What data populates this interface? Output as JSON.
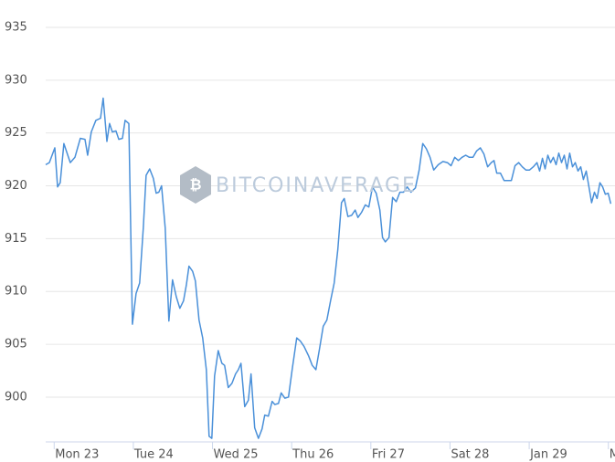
{
  "chart_data": {
    "type": "line",
    "watermark": "BITCOINAVERAGE",
    "color": "#4a90d9",
    "grid": true,
    "xlim": [
      -0.107,
      7.084
    ],
    "ylim": [
      895.76,
      937.59
    ],
    "yticks": [
      900,
      905,
      910,
      915,
      920,
      925,
      930,
      935
    ],
    "xticks": [
      {
        "value": 0,
        "label": "Mon 23"
      },
      {
        "value": 1,
        "label": "Tue 24"
      },
      {
        "value": 2,
        "label": "Wed 25"
      },
      {
        "value": 3,
        "label": "Thu 26"
      },
      {
        "value": 4,
        "label": "Fri 27"
      },
      {
        "value": 5,
        "label": "Sat 28"
      },
      {
        "value": 6,
        "label": "Jan 29"
      },
      {
        "value": 7,
        "label": "M"
      }
    ],
    "x": [
      -0.107,
      -0.061,
      0.008,
      0.043,
      0.077,
      0.123,
      0.204,
      0.262,
      0.331,
      0.389,
      0.423,
      0.469,
      0.527,
      0.585,
      0.619,
      0.666,
      0.7,
      0.735,
      0.781,
      0.816,
      0.862,
      0.896,
      0.943,
      0.988,
      1.034,
      1.08,
      1.126,
      1.161,
      1.207,
      1.253,
      1.288,
      1.322,
      1.357,
      1.403,
      1.449,
      1.495,
      1.542,
      1.588,
      1.634,
      1.669,
      1.703,
      1.749,
      1.784,
      1.83,
      1.876,
      1.922,
      1.957,
      1.992,
      2.026,
      2.072,
      2.118,
      2.153,
      2.199,
      2.245,
      2.291,
      2.326,
      2.36,
      2.407,
      2.453,
      2.487,
      2.533,
      2.58,
      2.626,
      2.66,
      2.706,
      2.753,
      2.787,
      2.833,
      2.868,
      2.914,
      2.96,
      3.006,
      3.064,
      3.11,
      3.156,
      3.214,
      3.26,
      3.306,
      3.352,
      3.398,
      3.445,
      3.491,
      3.537,
      3.583,
      3.629,
      3.664,
      3.71,
      3.756,
      3.802,
      3.837,
      3.883,
      3.929,
      3.975,
      4.021,
      4.068,
      4.114,
      4.148,
      4.183,
      4.229,
      4.275,
      4.321,
      4.367,
      4.413,
      4.46,
      4.506,
      4.563,
      4.61,
      4.656,
      4.702,
      4.748,
      4.794,
      4.852,
      4.91,
      4.967,
      5.013,
      5.059,
      5.106,
      5.152,
      5.198,
      5.244,
      5.29,
      5.336,
      5.383,
      5.429,
      5.475,
      5.521,
      5.556,
      5.59,
      5.636,
      5.683,
      5.729,
      5.775,
      5.821,
      5.867,
      5.913,
      5.959,
      6.005,
      6.052,
      6.098,
      6.132,
      6.167,
      6.201,
      6.236,
      6.27,
      6.305,
      6.339,
      6.374,
      6.409,
      6.443,
      6.478,
      6.512,
      6.547,
      6.582,
      6.616,
      6.651,
      6.685,
      6.72,
      6.755,
      6.789,
      6.824,
      6.858,
      6.893,
      6.928,
      6.962,
      6.997,
      7.031
    ],
    "values": [
      922.0,
      922.2,
      923.6,
      919.9,
      920.3,
      924.0,
      922.2,
      922.7,
      924.5,
      924.4,
      922.9,
      925.1,
      926.2,
      926.4,
      928.3,
      924.2,
      925.9,
      925.1,
      925.2,
      924.4,
      924.5,
      926.2,
      925.9,
      906.9,
      909.8,
      910.8,
      916.0,
      921.0,
      921.6,
      920.7,
      919.3,
      919.4,
      920.0,
      916.0,
      907.2,
      911.1,
      909.5,
      908.4,
      909.1,
      910.6,
      912.4,
      911.9,
      911.0,
      907.3,
      905.6,
      902.6,
      896.3,
      896.1,
      902.0,
      904.4,
      903.2,
      903.0,
      900.9,
      901.3,
      902.2,
      902.6,
      903.2,
      899.1,
      899.7,
      902.2,
      897.1,
      896.1,
      897.0,
      898.3,
      898.2,
      899.6,
      899.3,
      899.4,
      900.4,
      899.9,
      900.0,
      902.6,
      905.6,
      905.3,
      904.8,
      903.9,
      903.0,
      902.6,
      904.6,
      906.7,
      907.3,
      909.1,
      910.8,
      914.0,
      918.4,
      918.8,
      917.1,
      917.2,
      917.7,
      917.0,
      917.5,
      918.2,
      918.0,
      919.9,
      919.3,
      917.7,
      915.1,
      914.7,
      915.1,
      918.9,
      918.5,
      919.4,
      919.4,
      919.9,
      919.4,
      919.8,
      921.5,
      924.0,
      923.5,
      922.7,
      921.5,
      922.0,
      922.3,
      922.2,
      921.9,
      922.7,
      922.4,
      922.7,
      922.9,
      922.7,
      922.7,
      923.3,
      923.6,
      923.0,
      921.8,
      922.2,
      922.4,
      921.2,
      921.2,
      920.5,
      920.5,
      920.5,
      921.9,
      922.2,
      921.8,
      921.5,
      921.5,
      921.8,
      922.2,
      921.4,
      922.6,
      921.6,
      922.9,
      922.2,
      922.7,
      922.0,
      923.1,
      922.2,
      922.9,
      921.6,
      923.1,
      921.8,
      922.2,
      921.4,
      921.8,
      920.6,
      921.4,
      919.9,
      918.4,
      919.4,
      918.8,
      920.3,
      919.9,
      919.2,
      919.3,
      918.3
    ]
  }
}
